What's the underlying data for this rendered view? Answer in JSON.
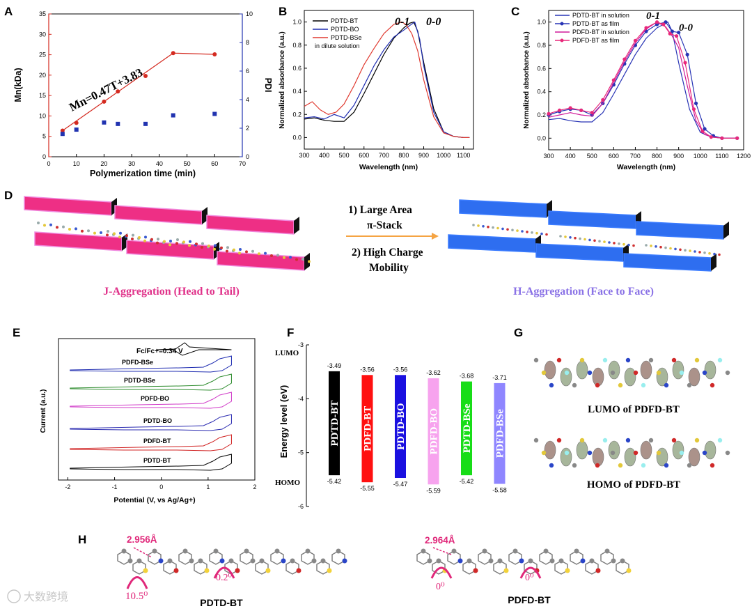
{
  "panels": {
    "A": "A",
    "B": "B",
    "C": "C",
    "D": "D",
    "E": "E",
    "F": "F",
    "G": "G",
    "H": "H"
  },
  "chart_data": [
    {
      "panel": "A",
      "type": "scatter",
      "xlabel": "Polymerization time (min)",
      "ylabel": "Mn(kDa)",
      "y2label": "PDI",
      "xlim": [
        0,
        70
      ],
      "ylim": [
        0,
        35
      ],
      "y2lim": [
        0,
        10
      ],
      "xticks": [
        0,
        10,
        20,
        30,
        40,
        50,
        60,
        70
      ],
      "yticks": [
        0,
        5,
        10,
        15,
        20,
        25,
        30,
        35
      ],
      "y2ticks": [
        0,
        2,
        4,
        6,
        8,
        10
      ],
      "annotation": "Mn=0.47T+3.83",
      "colors": {
        "mn": "#d42a20",
        "pdi": "#2133b0"
      },
      "series": [
        {
          "axis": "left",
          "x": [
            5,
            10,
            20,
            25,
            35,
            45,
            60
          ],
          "y": [
            6.4,
            8.3,
            13.5,
            16,
            19.8,
            25.4,
            25.1
          ]
        },
        {
          "axis": "right",
          "x": [
            5,
            10,
            20,
            25,
            35,
            45,
            60
          ],
          "y": [
            1.6,
            1.9,
            2.4,
            2.3,
            2.3,
            2.9,
            3.0
          ]
        }
      ],
      "fit_line": {
        "x": [
          5,
          45,
          60
        ],
        "y": [
          6.4,
          25.4,
          25.1
        ]
      }
    },
    {
      "panel": "B",
      "type": "line",
      "xlabel": "Wavelength (nm)",
      "ylabel": "Normalized absorbance (a.u.)",
      "xlim": [
        300,
        1150
      ],
      "ylim": [
        -0.1,
        1.1
      ],
      "xticks": [
        300,
        400,
        500,
        600,
        700,
        800,
        900,
        1000,
        1100
      ],
      "yticks": [
        0.0,
        0.2,
        0.4,
        0.6,
        0.8,
        1.0
      ],
      "legend": [
        "PDTD-BT",
        "PDTD-BO",
        "PDTD-BSe",
        "in dilute solution"
      ],
      "annotations": [
        "0-1",
        "0-0"
      ],
      "series": [
        {
          "color": "#000000",
          "x": [
            300,
            350,
            400,
            450,
            500,
            550,
            600,
            650,
            700,
            750,
            800,
            830,
            850,
            870,
            900,
            950,
            1000,
            1050,
            1100,
            1130
          ],
          "y": [
            0.16,
            0.17,
            0.15,
            0.14,
            0.14,
            0.22,
            0.38,
            0.55,
            0.72,
            0.86,
            0.95,
            0.99,
            1.0,
            0.92,
            0.65,
            0.25,
            0.05,
            0.01,
            0.0,
            0.0
          ]
        },
        {
          "color": "#1d2bb0",
          "x": [
            300,
            350,
            400,
            450,
            500,
            550,
            600,
            650,
            700,
            750,
            800,
            830,
            855,
            880,
            900,
            950,
            1000,
            1050,
            1100,
            1130
          ],
          "y": [
            0.17,
            0.18,
            0.16,
            0.2,
            0.17,
            0.28,
            0.45,
            0.62,
            0.76,
            0.87,
            0.93,
            0.97,
            1.0,
            0.85,
            0.62,
            0.22,
            0.05,
            0.01,
            0.0,
            0.0
          ]
        },
        {
          "color": "#e03a30",
          "x": [
            300,
            340,
            380,
            420,
            460,
            500,
            550,
            600,
            650,
            700,
            750,
            790,
            810,
            840,
            870,
            900,
            950,
            1000,
            1050,
            1100,
            1130
          ],
          "y": [
            0.27,
            0.31,
            0.24,
            0.2,
            0.22,
            0.29,
            0.45,
            0.63,
            0.77,
            0.9,
            0.98,
            1.0,
            0.98,
            0.9,
            0.75,
            0.5,
            0.18,
            0.04,
            0.01,
            0.0,
            0.0
          ]
        }
      ]
    },
    {
      "panel": "C",
      "type": "line",
      "xlabel": "Wavelength (nm)",
      "ylabel": "Normalized absorbance (a.u.)",
      "xlim": [
        300,
        1200
      ],
      "ylim": [
        -0.1,
        1.1
      ],
      "xticks": [
        300,
        400,
        500,
        600,
        700,
        800,
        900,
        1000,
        1100,
        1200
      ],
      "yticks": [
        0.0,
        0.2,
        0.4,
        0.6,
        0.8,
        1.0
      ],
      "legend": [
        "PDTD-BT in solution",
        "PDTD-BT as film",
        "PDFD-BT in solution",
        "PDFD-BT as film"
      ],
      "annotations": [
        "0-1",
        "0-0"
      ],
      "series": [
        {
          "color": "#2733b5",
          "marker": false,
          "x": [
            300,
            350,
            400,
            450,
            500,
            550,
            600,
            650,
            700,
            750,
            800,
            850,
            870,
            900,
            950,
            1000,
            1050,
            1100,
            1170
          ],
          "y": [
            0.16,
            0.17,
            0.15,
            0.14,
            0.14,
            0.22,
            0.38,
            0.55,
            0.72,
            0.86,
            0.95,
            1.0,
            0.92,
            0.65,
            0.25,
            0.05,
            0.01,
            0.0,
            0.0
          ]
        },
        {
          "color": "#2733b5",
          "marker": true,
          "x": [
            300,
            350,
            400,
            450,
            500,
            550,
            600,
            650,
            700,
            750,
            800,
            840,
            870,
            900,
            940,
            980,
            1020,
            1060,
            1100,
            1170
          ],
          "y": [
            0.2,
            0.23,
            0.25,
            0.24,
            0.2,
            0.3,
            0.46,
            0.64,
            0.8,
            0.92,
            0.98,
            1.0,
            0.92,
            0.91,
            0.72,
            0.3,
            0.08,
            0.02,
            0.0,
            0.0
          ]
        },
        {
          "color": "#d0199a",
          "marker": false,
          "x": [
            300,
            350,
            400,
            450,
            500,
            550,
            600,
            650,
            700,
            750,
            800,
            840,
            870,
            900,
            940,
            980,
            1020,
            1060,
            1100,
            1170
          ],
          "y": [
            0.18,
            0.2,
            0.22,
            0.2,
            0.19,
            0.3,
            0.48,
            0.66,
            0.82,
            0.94,
            1.0,
            0.96,
            0.88,
            0.78,
            0.45,
            0.15,
            0.03,
            0.01,
            0.0,
            0.0
          ]
        },
        {
          "color": "#e8287a",
          "marker": true,
          "x": [
            300,
            350,
            400,
            450,
            500,
            550,
            600,
            650,
            700,
            750,
            800,
            830,
            860,
            890,
            930,
            970,
            1010,
            1050,
            1100,
            1170
          ],
          "y": [
            0.21,
            0.24,
            0.26,
            0.24,
            0.22,
            0.33,
            0.5,
            0.68,
            0.84,
            0.95,
            1.0,
            0.98,
            0.9,
            0.88,
            0.65,
            0.25,
            0.06,
            0.01,
            0.0,
            0.0
          ]
        }
      ]
    },
    {
      "panel": "E",
      "type": "line",
      "xlabel": "Potential (V, vs Ag/Ag+)",
      "ylabel": "Current (a.u.)",
      "xlim": [
        -2.2,
        2.0
      ],
      "xticks": [
        -2,
        -1,
        0,
        1,
        2
      ],
      "ref_label": "Fc/Fc+=0.34 V",
      "traces": [
        {
          "label": "PDFD-BSe",
          "color": "#1d2bb0"
        },
        {
          "label": "PDTD-BSe",
          "color": "#2a8a2a"
        },
        {
          "label": "PDFD-BO",
          "color": "#d03ac8"
        },
        {
          "label": "PDTD-BO",
          "color": "#2a2ab0"
        },
        {
          "label": "PDFD-BT",
          "color": "#d02020"
        },
        {
          "label": "PDTD-BT",
          "color": "#000000"
        }
      ]
    },
    {
      "panel": "F",
      "type": "bar",
      "ylabel": "Energy level (eV)",
      "ylim": [
        -6,
        -3
      ],
      "yticks": [
        -3,
        -4,
        -5,
        -6
      ],
      "top_label": "LUMO",
      "bottom_label": "HOMO",
      "categories": [
        "PDTD-BT",
        "PDFD-BT",
        "PDTD-BO",
        "PDFD-BO",
        "PDTD-BSe",
        "PDFD-BSe"
      ],
      "lumo": [
        -3.49,
        -3.56,
        -3.56,
        -3.62,
        -3.68,
        -3.71
      ],
      "homo": [
        -5.42,
        -5.55,
        -5.47,
        -5.59,
        -5.42,
        -5.58
      ],
      "lumo_labels": [
        "-3.49",
        "-3.56",
        "-3.56",
        "-3.62",
        "-3.68",
        "-3.71"
      ],
      "homo_labels": [
        "-5.42",
        "-5.55",
        "-5.47",
        "-5.59",
        "-5.42",
        "-5.58"
      ],
      "colors": [
        "#000000",
        "#ff1010",
        "#1a10e0",
        "#f7a3ee",
        "#18dd18",
        "#8f86ff"
      ]
    }
  ],
  "panel_D": {
    "step1": "1)  Large Area",
    "step1b": "π-Stack",
    "step2": "2) High Charge",
    "step2b": "Mobility",
    "left_caption": "J-Aggregation (Head to Tail)",
    "right_caption": "H-Aggregation (Face to Face)",
    "left_color": "#e0328a",
    "right_color": "#8a72e6"
  },
  "panel_G": {
    "lumo_caption": "LUMO of PDFD-BT",
    "homo_caption": "HOMO of PDFD-BT"
  },
  "panel_H": {
    "left_distance": "2.956Å",
    "left_angle1": "10.5⁰",
    "left_angle2": "0.2⁰",
    "left_name": "PDTD-BT",
    "right_distance": "2.964Å",
    "right_angle1": "0⁰",
    "right_angle2": "0⁰",
    "right_name": "PDFD-BT",
    "accent": "#e0287a"
  },
  "watermark": "大数跨境"
}
